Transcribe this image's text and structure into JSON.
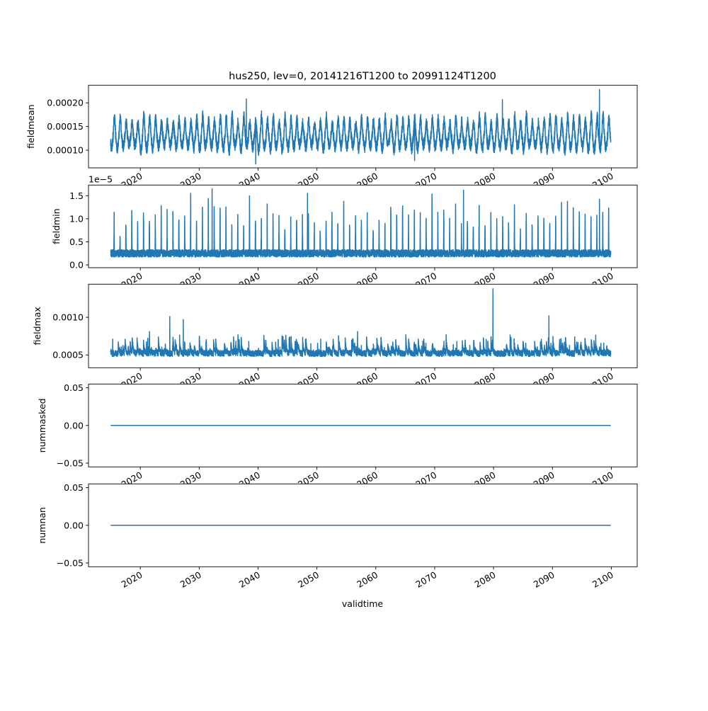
{
  "chart_data": {
    "type": "line",
    "title": "hus250, lev=0, 20141216T1200 to 20991124T1200",
    "xlabel": "validtime",
    "x_range": [
      2011.2,
      2104.4
    ],
    "x_ticks": [
      2020,
      2030,
      2040,
      2050,
      2060,
      2070,
      2080,
      2090,
      2100
    ],
    "x_tick_labels": [
      "2020",
      "2030",
      "2040",
      "2050",
      "2060",
      "2070",
      "2080",
      "2090",
      "2100"
    ],
    "data_start": 2014.96,
    "data_end": 2099.9,
    "line_color": "#1f77b4",
    "grid": false,
    "panels": [
      {
        "ylabel": "fieldmean",
        "ylim": [
          6.27e-05,
          0.0002373
        ],
        "y_ticks": [
          0.0001,
          0.00015,
          0.0002
        ],
        "y_tick_labels": [
          "0.00010",
          "0.00015",
          "0.00020"
        ],
        "offset_text": "",
        "series": {
          "kind": "seasonal",
          "base": 0.000128,
          "amplitude": 2.8e-05,
          "noise": 1.2e-05,
          "min_clip": 7.5e-05,
          "peaks": [
            {
              "x": 2098.0,
              "y": 0.000228
            },
            {
              "x": 2038.0,
              "y": 0.000208
            },
            {
              "x": 2081.5,
              "y": 0.000207
            }
          ],
          "troughs": [
            {
              "x": 2039.6,
              "y": 7.1e-05
            },
            {
              "x": 2066.6,
              "y": 7.8e-05
            }
          ]
        }
      },
      {
        "ylabel": "fieldmin",
        "ylim": [
          -6e-07,
          1.73e-05
        ],
        "y_ticks": [
          0.0,
          5e-06,
          1e-05,
          1.5e-05
        ],
        "y_tick_labels": [
          "0.0",
          "0.5",
          "1.0",
          "1.5"
        ],
        "offset_text": "1e−5",
        "series": {
          "kind": "spiky-seasonal",
          "base": 2.5e-06,
          "spike": 9.5e-06,
          "noise": 8e-07,
          "min_clip": 5e-07,
          "peaks": [
            {
              "x": 2032.2,
              "y": 1.65e-05
            },
            {
              "x": 2074.9,
              "y": 1.62e-05
            },
            {
              "x": 2048.4,
              "y": 1.55e-05
            },
            {
              "x": 2098.0,
              "y": 1.42e-05
            }
          ]
        }
      },
      {
        "ylabel": "fieldmax",
        "ylim": [
          0.00033,
          0.00144
        ],
        "y_ticks": [
          0.0005,
          0.001
        ],
        "y_tick_labels": [
          "0.0005",
          "0.0010"
        ],
        "offset_text": "",
        "series": {
          "kind": "bursty",
          "base": 0.00052,
          "burst": 0.00018,
          "noise": 4e-05,
          "min_clip": 0.00039,
          "peaks": [
            {
              "x": 2079.9,
              "y": 0.00138
            },
            {
              "x": 2025.0,
              "y": 0.00101
            },
            {
              "x": 2089.4,
              "y": 0.00102
            },
            {
              "x": 2027.3,
              "y": 0.00097
            }
          ]
        }
      },
      {
        "ylabel": "nummasked",
        "ylim": [
          -0.055,
          0.055
        ],
        "y_ticks": [
          -0.05,
          0.0,
          0.05
        ],
        "y_tick_labels": [
          "−0.05",
          "0.00",
          "0.05"
        ],
        "offset_text": "",
        "series": {
          "kind": "constant",
          "value": 0
        }
      },
      {
        "ylabel": "numnan",
        "ylim": [
          -0.055,
          0.055
        ],
        "y_ticks": [
          -0.05,
          0.0,
          0.05
        ],
        "y_tick_labels": [
          "−0.05",
          "0.00",
          "0.05"
        ],
        "offset_text": "",
        "series": {
          "kind": "constant",
          "value": 0
        }
      }
    ]
  }
}
